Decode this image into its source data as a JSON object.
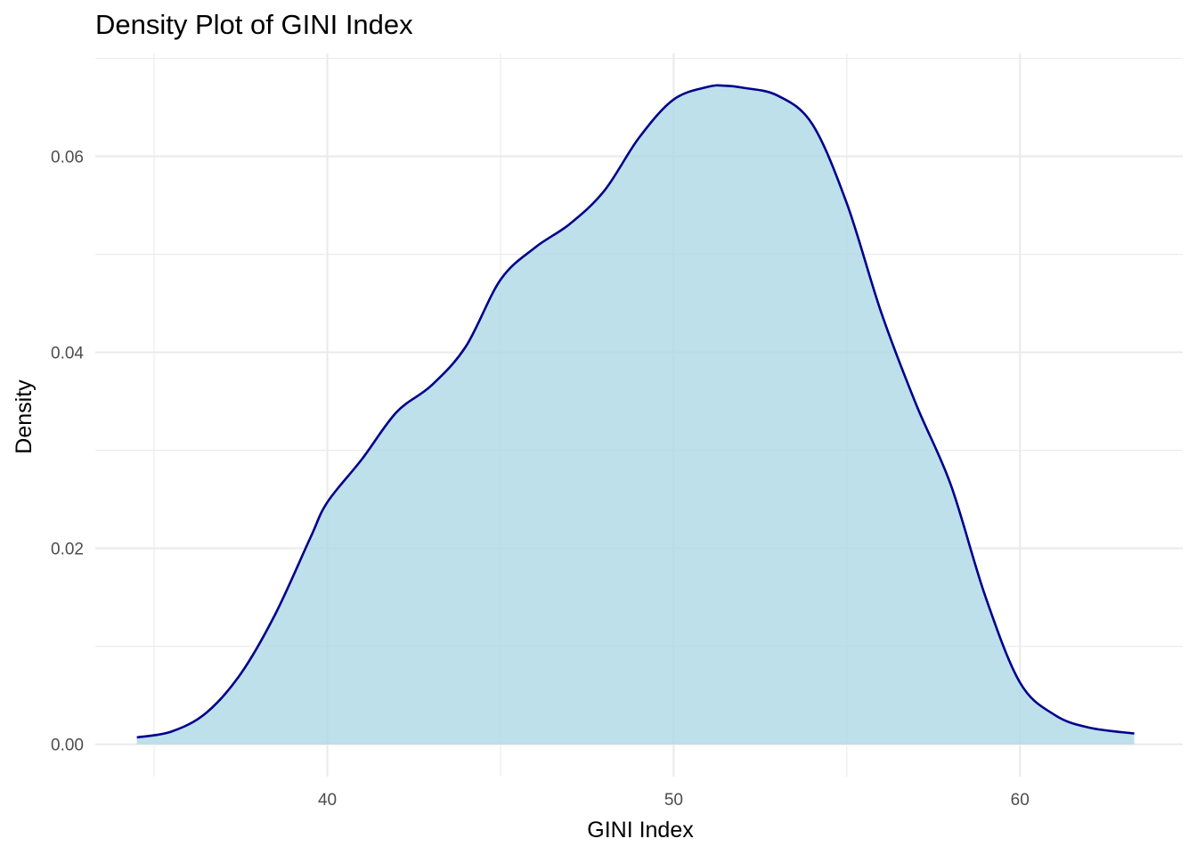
{
  "chart_data": {
    "type": "area",
    "title": "Density Plot of GINI Index",
    "xlabel": "GINI Index",
    "ylabel": "Density",
    "xlim": [
      33.3,
      64.7
    ],
    "ylim": [
      -0.0033,
      0.0705
    ],
    "x_ticks": [
      40,
      50,
      60
    ],
    "x_tick_labels": [
      "40",
      "50",
      "60"
    ],
    "y_ticks": [
      0.0,
      0.02,
      0.04,
      0.06
    ],
    "y_tick_labels": [
      "0.00",
      "0.02",
      "0.04",
      "0.06"
    ],
    "grid": true,
    "legend": "none",
    "fill_color": "#add8e6",
    "fill_opacity": 0.8,
    "line_color": "#00008b",
    "series": [
      {
        "x": [
          34.5,
          35.5,
          36.5,
          37.5,
          38.5,
          39.5,
          40.0,
          41.0,
          42.0,
          43.0,
          44.0,
          45.0,
          46.0,
          47.0,
          48.0,
          49.0,
          50.0,
          51.0,
          51.5,
          52.0,
          53.0,
          54.0,
          55.0,
          56.0,
          57.0,
          58.0,
          59.0,
          60.0,
          61.0,
          62.0,
          63.3
        ],
        "values": [
          0.0007,
          0.0013,
          0.0032,
          0.0072,
          0.0133,
          0.021,
          0.0247,
          0.0291,
          0.0339,
          0.0366,
          0.0406,
          0.0474,
          0.0507,
          0.0531,
          0.0565,
          0.0619,
          0.0658,
          0.0671,
          0.0672,
          0.067,
          0.0662,
          0.0633,
          0.0552,
          0.044,
          0.0347,
          0.0265,
          0.0151,
          0.0063,
          0.003,
          0.0017,
          0.0011
        ]
      }
    ]
  }
}
